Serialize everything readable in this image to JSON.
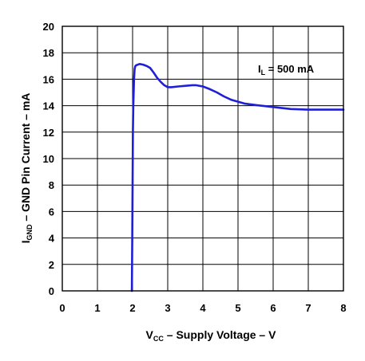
{
  "chart_data": {
    "type": "line",
    "xlim": [
      0,
      8
    ],
    "ylim": [
      0,
      20
    ],
    "x_ticks": [
      "0",
      "1",
      "2",
      "3",
      "4",
      "5",
      "6",
      "7",
      "8"
    ],
    "y_ticks": [
      "0",
      "2",
      "4",
      "6",
      "8",
      "10",
      "12",
      "14",
      "16",
      "18",
      "20"
    ],
    "grid": true,
    "xlabel": {
      "main": "V",
      "sub": "CC",
      "rest": " – Supply Voltage – V"
    },
    "ylabel": {
      "main": "I",
      "sub": "GND",
      "rest": " – GND Pin Current – mA"
    },
    "annotation": {
      "main": "I",
      "sub": "L",
      "rest": " = 500 mA"
    },
    "series": [
      {
        "color": "#1f1fd6",
        "x": [
          1.98,
          1.99,
          2.0,
          2.01,
          2.02,
          2.04,
          2.06,
          2.08,
          2.1,
          2.15,
          2.2,
          2.3,
          2.4,
          2.5,
          2.6,
          2.7,
          2.8,
          2.9,
          3.0,
          3.1,
          3.3,
          3.5,
          3.7,
          3.8,
          4.0,
          4.2,
          4.4,
          4.6,
          4.8,
          5.0,
          5.2,
          5.5,
          6.0,
          6.5,
          7.0,
          7.5,
          8.0
        ],
        "y": [
          0,
          4,
          8,
          12,
          14,
          16,
          16.8,
          17.0,
          17.05,
          17.1,
          17.15,
          17.1,
          17.0,
          16.85,
          16.5,
          16.1,
          15.8,
          15.55,
          15.4,
          15.4,
          15.45,
          15.5,
          15.55,
          15.55,
          15.45,
          15.25,
          15.0,
          14.7,
          14.45,
          14.3,
          14.15,
          14.05,
          13.9,
          13.75,
          13.7,
          13.7,
          13.7
        ]
      }
    ]
  }
}
